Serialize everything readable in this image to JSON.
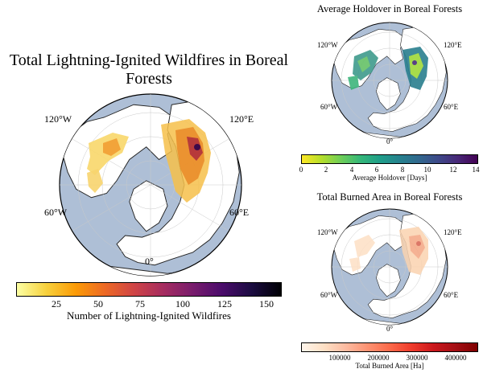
{
  "main": {
    "title": "Total Lightning-Ignited Wildfires in Boreal Forests",
    "lon_labels": {
      "w120": "120°W",
      "e120": "120°E",
      "w60": "60°W",
      "e60": "60°E",
      "zero": "0°"
    },
    "colorbar": {
      "label": "Number of Lightning-Ignited Wildfires",
      "ticks": [
        "25",
        "50",
        "75",
        "100",
        "125",
        "150"
      ],
      "range": [
        0,
        158
      ],
      "colormap": "inferno_r"
    }
  },
  "holdover": {
    "title": "Average Holdover in Boreal Forests",
    "lon_labels": {
      "w120": "120°W",
      "e120": "120°E",
      "w60": "60°W",
      "e60": "60°E",
      "zero": "0°"
    },
    "colorbar": {
      "label": "Average Holdover [Days]",
      "ticks": [
        "0",
        "2",
        "4",
        "6",
        "8",
        "10",
        "12",
        "14"
      ],
      "range": [
        0,
        14
      ],
      "colormap": "viridis_r"
    }
  },
  "burned": {
    "title": "Total Burned Area in Boreal Forests",
    "lon_labels": {
      "w120": "120°W",
      "e120": "120°E",
      "w60": "60°W",
      "e60": "60°E",
      "zero": "0°"
    },
    "colorbar": {
      "label": "Total Burned Area [Ha]",
      "ticks": [
        "100000",
        "200000",
        "300000",
        "400000"
      ],
      "range": [
        0,
        460000
      ],
      "colormap": "reds"
    }
  },
  "colors": {
    "ocean": "#aebfd6",
    "land": "#ffffff",
    "coast": "#222222"
  }
}
